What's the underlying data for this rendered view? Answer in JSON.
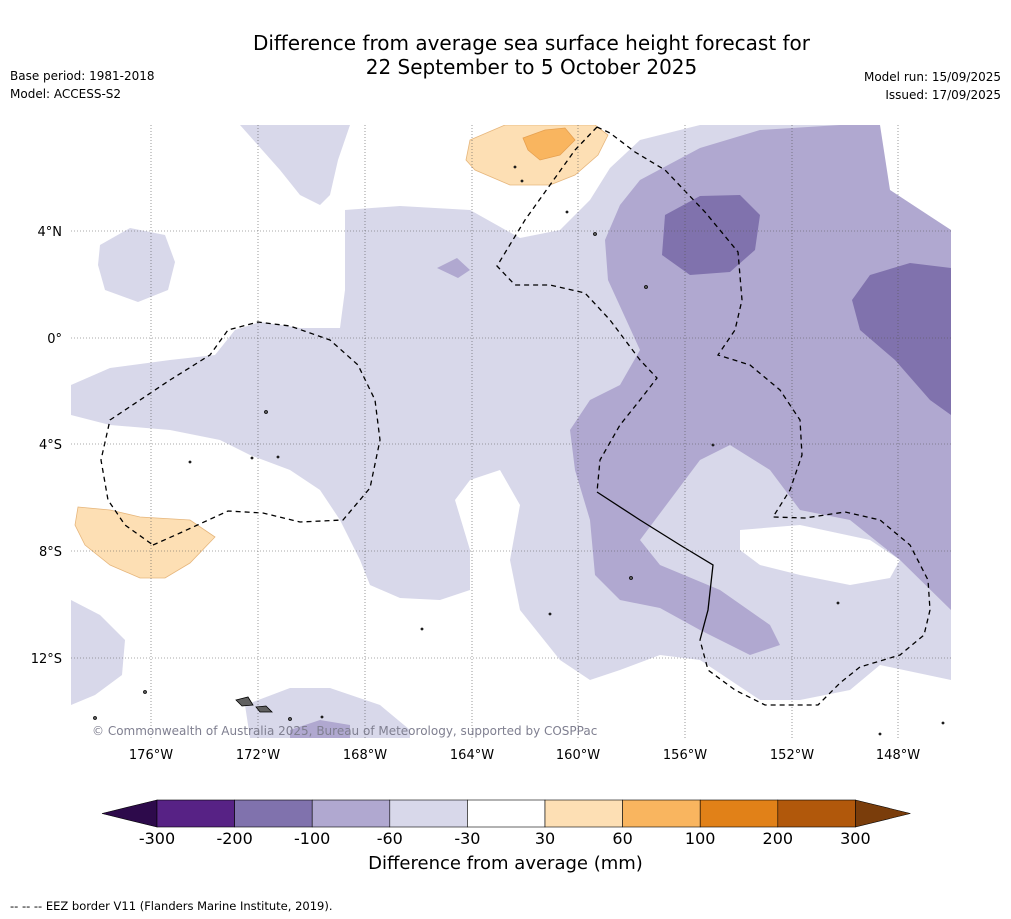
{
  "title_line1": "Difference from average sea surface height forecast for",
  "title_line2": "22 September to 5 October 2025",
  "base_period": "Base period: 1981-2018",
  "model": "Model: ACCESS-S2",
  "model_run": "Model run: 15/09/2025",
  "issued": "Issued: 17/09/2025",
  "lon_labels": [
    "176°W",
    "172°W",
    "168°W",
    "164°W",
    "160°W",
    "156°W",
    "152°W",
    "148°W"
  ],
  "lat_labels": [
    "4°N",
    "0°",
    "4°S",
    "8°S",
    "12°S"
  ],
  "copyright": "© Commonwealth of Australia 2025, Bureau of Meteorology, supported by COSPPac",
  "colorbar": {
    "ticks": [
      "-300",
      "-200",
      "-100",
      "-60",
      "-30",
      "30",
      "60",
      "100",
      "200",
      "300"
    ],
    "label": "Difference from average (mm)",
    "colors": [
      "#2d0a4b",
      "#572285",
      "#8072ad",
      "#b0a8d0",
      "#d8d8ea",
      "#ffffff",
      "#fddfb4",
      "#f9b55f",
      "#e18118",
      "#b1580b",
      "#7a3d0b"
    ]
  },
  "legend_eez": "-- -- -- EEZ border V11 (Flanders Marine Institute, 2019)."
}
